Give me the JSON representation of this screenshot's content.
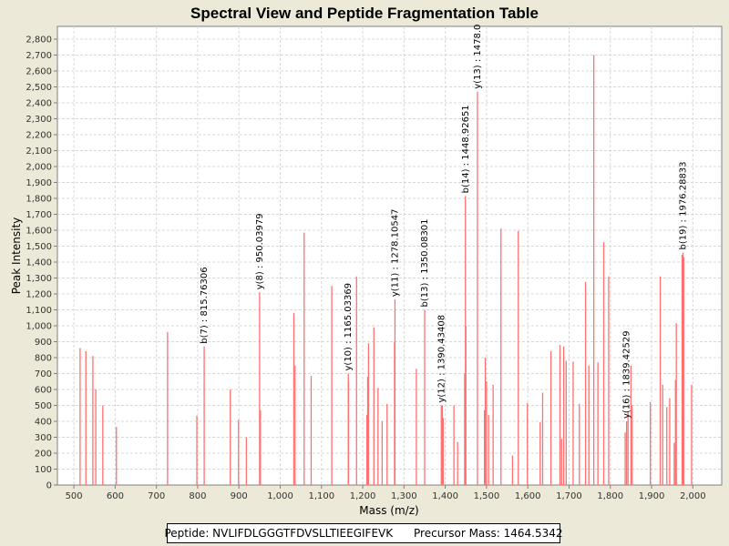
{
  "chart_data": {
    "type": "bar",
    "title": "Spectral View and Peptide Fragmentation Table",
    "xlabel": "Mass (m/z)",
    "ylabel": "Peak Intensity",
    "xlim": [
      460,
      2070
    ],
    "ylim": [
      0,
      2880
    ],
    "xticks": [
      500,
      600,
      700,
      800,
      900,
      1000,
      1100,
      1200,
      1300,
      1400,
      1500,
      1600,
      1700,
      1800,
      1900,
      2000
    ],
    "xtick_labels": [
      "500",
      "600",
      "700",
      "800",
      "900",
      "1,000",
      "1,100",
      "1,200",
      "1,300",
      "1,400",
      "1,500",
      "1,600",
      "1,700",
      "1,800",
      "1,900",
      "2,000"
    ],
    "yticks": [
      0,
      100,
      200,
      300,
      400,
      500,
      600,
      700,
      800,
      900,
      1000,
      1100,
      1200,
      1300,
      1400,
      1500,
      1600,
      1700,
      1800,
      1900,
      2000,
      2100,
      2200,
      2300,
      2400,
      2500,
      2600,
      2700,
      2800
    ],
    "ytick_labels": [
      "0",
      "100",
      "200",
      "300",
      "400",
      "500",
      "600",
      "700",
      "800",
      "900",
      "1,000",
      "1,100",
      "1,200",
      "1,300",
      "1,400",
      "1,500",
      "1,600",
      "1,700",
      "1,800",
      "1,900",
      "2,000",
      "2,100",
      "2,200",
      "2,300",
      "2,400",
      "2,500",
      "2,600",
      "2,700",
      "2,800"
    ],
    "color": "#ff7070",
    "peaks": [
      [
        515,
        860
      ],
      [
        529,
        840
      ],
      [
        546,
        810
      ],
      [
        553,
        600
      ],
      [
        570,
        500
      ],
      [
        603,
        365
      ],
      [
        727,
        960
      ],
      [
        798,
        435
      ],
      [
        815.76,
        870
      ],
      [
        879,
        600
      ],
      [
        899,
        410
      ],
      [
        918,
        300
      ],
      [
        950.04,
        1210
      ],
      [
        952,
        470
      ],
      [
        1033,
        1080
      ],
      [
        1036,
        750
      ],
      [
        1058,
        1585
      ],
      [
        1075,
        685
      ],
      [
        1125,
        1250
      ],
      [
        1165.04,
        700
      ],
      [
        1165.5,
        650
      ],
      [
        1185,
        1310
      ],
      [
        1210,
        440
      ],
      [
        1212,
        680
      ],
      [
        1214,
        890
      ],
      [
        1227,
        990
      ],
      [
        1237,
        610
      ],
      [
        1247,
        400
      ],
      [
        1259,
        510
      ],
      [
        1277,
        900
      ],
      [
        1278.1,
        1165
      ],
      [
        1330,
        730
      ],
      [
        1350.08,
        1100
      ],
      [
        1390.43,
        500
      ],
      [
        1393,
        500
      ],
      [
        1395,
        420
      ],
      [
        1421,
        500
      ],
      [
        1430,
        270
      ],
      [
        1447,
        700
      ],
      [
        1448.93,
        1815
      ],
      [
        1450,
        1000
      ],
      [
        1478,
        2470
      ],
      [
        1495,
        470
      ],
      [
        1497,
        800
      ],
      [
        1500,
        650
      ],
      [
        1505,
        440
      ],
      [
        1516,
        630
      ],
      [
        1535,
        1610
      ],
      [
        1563,
        185
      ],
      [
        1577,
        1595
      ],
      [
        1599,
        515
      ],
      [
        1630,
        395
      ],
      [
        1636,
        580
      ],
      [
        1656,
        840
      ],
      [
        1678,
        880
      ],
      [
        1682,
        290
      ],
      [
        1687,
        870
      ],
      [
        1693,
        780
      ],
      [
        1710,
        775
      ],
      [
        1725,
        510
      ],
      [
        1740,
        1275
      ],
      [
        1748,
        750
      ],
      [
        1760,
        2700
      ],
      [
        1770,
        770
      ],
      [
        1784,
        1525
      ],
      [
        1796,
        1310
      ],
      [
        1836,
        330
      ],
      [
        1839.43,
        400
      ],
      [
        1843,
        460
      ],
      [
        1850,
        750
      ],
      [
        1853,
        500
      ],
      [
        1897,
        520
      ],
      [
        1921,
        1310
      ],
      [
        1927,
        630
      ],
      [
        1937,
        490
      ],
      [
        1944,
        545
      ],
      [
        1955,
        265
      ],
      [
        1958,
        660
      ],
      [
        1960,
        1015
      ],
      [
        1974,
        1445
      ],
      [
        1976.29,
        1460
      ],
      [
        1978,
        1430
      ],
      [
        1997,
        630
      ]
    ],
    "annotations": [
      {
        "x": 815.76,
        "y": 870,
        "label": "b(7) : 815.76306"
      },
      {
        "x": 950.04,
        "y": 1210,
        "label": "y(8) : 950.03979"
      },
      {
        "x": 1165.04,
        "y": 700,
        "label": "y(10) : 1165.03369"
      },
      {
        "x": 1278.1,
        "y": 1165,
        "label": "y(11) : 1278.10547"
      },
      {
        "x": 1350.08,
        "y": 1100,
        "label": "b(13) : 1350.08301"
      },
      {
        "x": 1390.43,
        "y": 500,
        "label": "y(12) : 1390.43408"
      },
      {
        "x": 1448.93,
        "y": 1815,
        "label": "b(14) : 1448.92651"
      },
      {
        "x": 1478,
        "y": 2470,
        "label": "y(13) : 1478.0"
      },
      {
        "x": 1839.43,
        "y": 400,
        "label": "y(16) : 1839.42529"
      },
      {
        "x": 1976.29,
        "y": 1460,
        "label": "b(19) : 1976.28833"
      }
    ]
  },
  "footer": {
    "peptide_label": "Peptide: NVLIFDLGGGTFDVSLLTIEEGIFEVK",
    "precursor_label": "Precursor Mass: 1464.5342"
  }
}
